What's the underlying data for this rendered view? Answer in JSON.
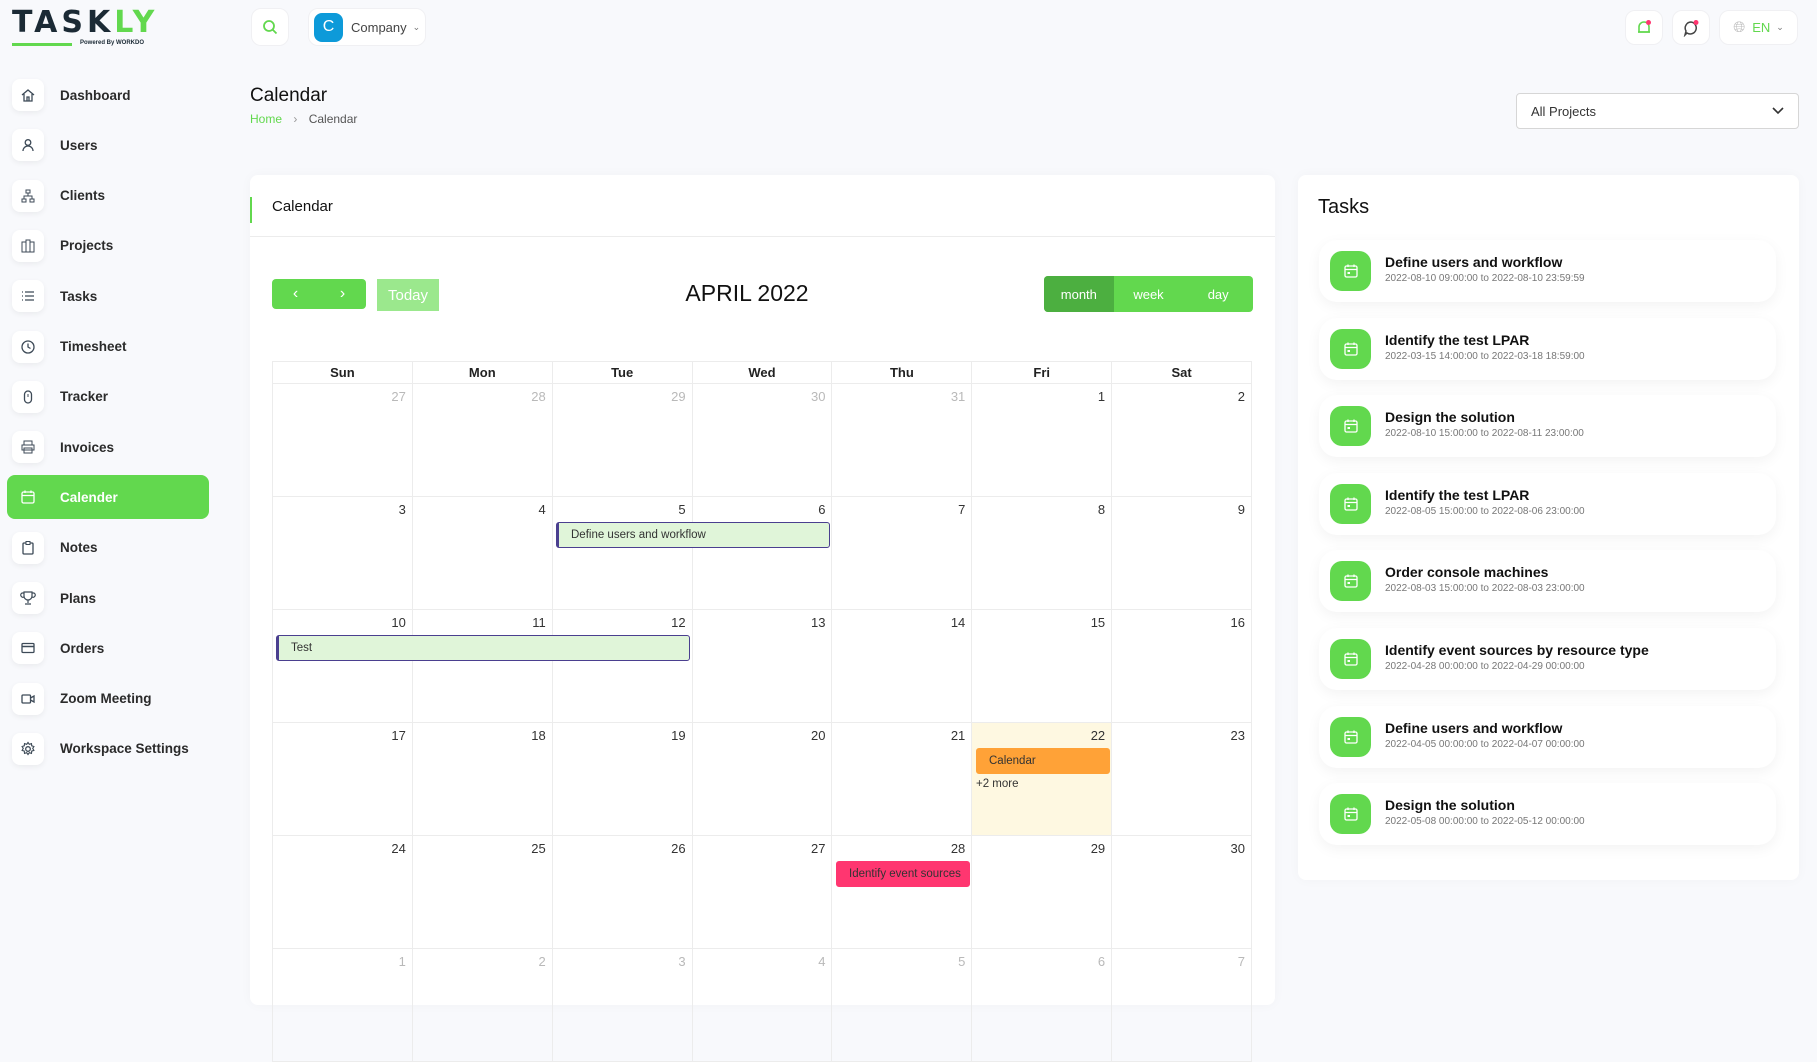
{
  "brand": {
    "name": "TASKLY",
    "tagline": "Powered By WORKDO",
    "accent": "#62d84e"
  },
  "topbar": {
    "company_initial": "C",
    "company_label": "Company",
    "language": "EN"
  },
  "sidebar": {
    "items": [
      {
        "label": "Dashboard",
        "icon": "home-icon"
      },
      {
        "label": "Users",
        "icon": "user-icon"
      },
      {
        "label": "Clients",
        "icon": "sitemap-icon"
      },
      {
        "label": "Projects",
        "icon": "projects-icon"
      },
      {
        "label": "Tasks",
        "icon": "list-icon"
      },
      {
        "label": "Timesheet",
        "icon": "clock-icon"
      },
      {
        "label": "Tracker",
        "icon": "tracker-icon"
      },
      {
        "label": "Invoices",
        "icon": "printer-icon"
      },
      {
        "label": "Calender",
        "icon": "calendar-icon",
        "active": true
      },
      {
        "label": "Notes",
        "icon": "clipboard-icon"
      },
      {
        "label": "Plans",
        "icon": "trophy-icon"
      },
      {
        "label": "Orders",
        "icon": "credit-card-icon"
      },
      {
        "label": "Zoom Meeting",
        "icon": "video-icon"
      },
      {
        "label": "Workspace Settings",
        "icon": "gear-icon"
      }
    ]
  },
  "page": {
    "title": "Calendar",
    "breadcrumb": [
      "Home",
      "Calendar"
    ],
    "project_filter": "All Projects"
  },
  "calendar": {
    "card_title": "Calendar",
    "month_title": "APRIL 2022",
    "today_label": "Today",
    "views": [
      "month",
      "week",
      "day"
    ],
    "active_view": "month",
    "weekdays": [
      "Sun",
      "Mon",
      "Tue",
      "Wed",
      "Thu",
      "Fri",
      "Sat"
    ],
    "weeks": [
      [
        {
          "d": "27",
          "o": true
        },
        {
          "d": "28",
          "o": true
        },
        {
          "d": "29",
          "o": true
        },
        {
          "d": "30",
          "o": true
        },
        {
          "d": "31",
          "o": true
        },
        {
          "d": "1"
        },
        {
          "d": "2"
        }
      ],
      [
        {
          "d": "3"
        },
        {
          "d": "4"
        },
        {
          "d": "5"
        },
        {
          "d": "6"
        },
        {
          "d": "7"
        },
        {
          "d": "8"
        },
        {
          "d": "9"
        }
      ],
      [
        {
          "d": "10"
        },
        {
          "d": "11"
        },
        {
          "d": "12"
        },
        {
          "d": "13"
        },
        {
          "d": "14"
        },
        {
          "d": "15"
        },
        {
          "d": "16"
        }
      ],
      [
        {
          "d": "17"
        },
        {
          "d": "18"
        },
        {
          "d": "19"
        },
        {
          "d": "20"
        },
        {
          "d": "21"
        },
        {
          "d": "22",
          "today": true
        },
        {
          "d": "23"
        }
      ],
      [
        {
          "d": "24"
        },
        {
          "d": "25"
        },
        {
          "d": "26"
        },
        {
          "d": "27"
        },
        {
          "d": "28"
        },
        {
          "d": "29"
        },
        {
          "d": "30"
        }
      ],
      [
        {
          "d": "1",
          "o": true
        },
        {
          "d": "2",
          "o": true
        },
        {
          "d": "3",
          "o": true
        },
        {
          "d": "4",
          "o": true
        },
        {
          "d": "5",
          "o": true
        },
        {
          "d": "6",
          "o": true
        },
        {
          "d": "7",
          "o": true
        }
      ]
    ],
    "events": [
      {
        "title": "Define users and workflow",
        "week": 1,
        "start_col": 2,
        "span": 2,
        "bg": "#e0f5d9",
        "border": "#4a3f8f",
        "color": "#333"
      },
      {
        "title": "Test",
        "week": 2,
        "start_col": 0,
        "span": 3,
        "bg": "#e0f5d9",
        "border": "#4a3f8f",
        "color": "#333"
      },
      {
        "title": "Calendar",
        "week": 3,
        "start_col": 5,
        "span": 1,
        "bg": "#ffa237",
        "border": "#ffa237",
        "color": "#333"
      },
      {
        "title": "Identify event sources",
        "week": 4,
        "start_col": 4,
        "span": 1,
        "bg": "#ff3670",
        "border": "#ff3670",
        "color": "#333"
      }
    ],
    "more": {
      "label": "+2 more",
      "week": 3,
      "col": 5
    }
  },
  "tasks": {
    "title": "Tasks",
    "items": [
      {
        "title": "Define users and workflow",
        "range": "2022-08-10 09:00:00 to 2022-08-10 23:59:59"
      },
      {
        "title": "Identify the test LPAR",
        "range": "2022-03-15 14:00:00 to 2022-03-18 18:59:00"
      },
      {
        "title": "Design the solution",
        "range": "2022-08-10 15:00:00 to 2022-08-11 23:00:00"
      },
      {
        "title": "Identify the test LPAR",
        "range": "2022-08-05 15:00:00 to 2022-08-06 23:00:00"
      },
      {
        "title": "Order console machines",
        "range": "2022-08-03 15:00:00 to 2022-08-03 23:00:00"
      },
      {
        "title": "Identify event sources by resource type",
        "range": "2022-04-28 00:00:00 to 2022-04-29 00:00:00"
      },
      {
        "title": "Define users and workflow",
        "range": "2022-04-05 00:00:00 to 2022-04-07 00:00:00"
      },
      {
        "title": "Design the solution",
        "range": "2022-05-08 00:00:00 to 2022-05-12 00:00:00"
      }
    ]
  }
}
